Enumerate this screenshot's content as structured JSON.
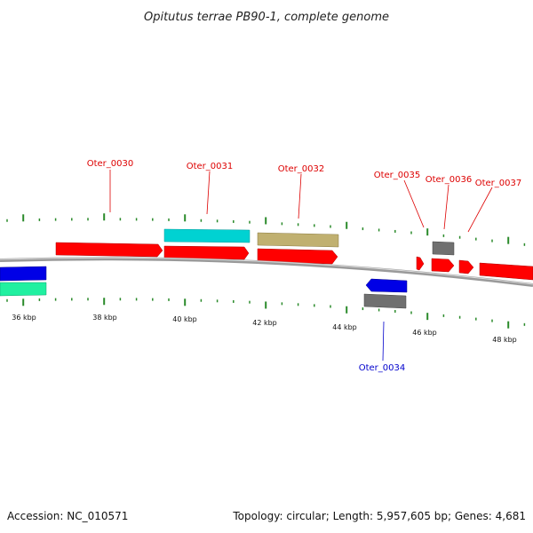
{
  "title": "Opitutus terrae PB90-1, complete genome",
  "footer": {
    "accession": "Accession: NC_010571",
    "summary": "Topology: circular; Length: 5,957,605 bp; Genes: 4,681"
  },
  "colors": {
    "cds": "#ff0000",
    "reverse": "#0000e6",
    "rna": "#00d2d2",
    "trna": "#c0b070",
    "aqua": "#20f0a0",
    "gray": "#707070",
    "backbone": "#808080",
    "skew_tick": "#2a8a2a",
    "label_red": "#dd0000",
    "label_blue": "#0000cc"
  },
  "kbp_labels": [
    "36 kbp",
    "38 kbp",
    "40 kbp",
    "42 kbp",
    "44 kbp",
    "46 kbp",
    "48 kbp"
  ],
  "gene_labels": [
    {
      "text": "Oter_0030",
      "color": "label_red"
    },
    {
      "text": "Oter_0031",
      "color": "label_red"
    },
    {
      "text": "Oter_0032",
      "color": "label_red"
    },
    {
      "text": "Oter_0035",
      "color": "label_red"
    },
    {
      "text": "Oter_0036",
      "color": "label_red"
    },
    {
      "text": "Oter_0037",
      "color": "label_red"
    },
    {
      "text": "Oter_0034",
      "color": "label_blue"
    }
  ]
}
